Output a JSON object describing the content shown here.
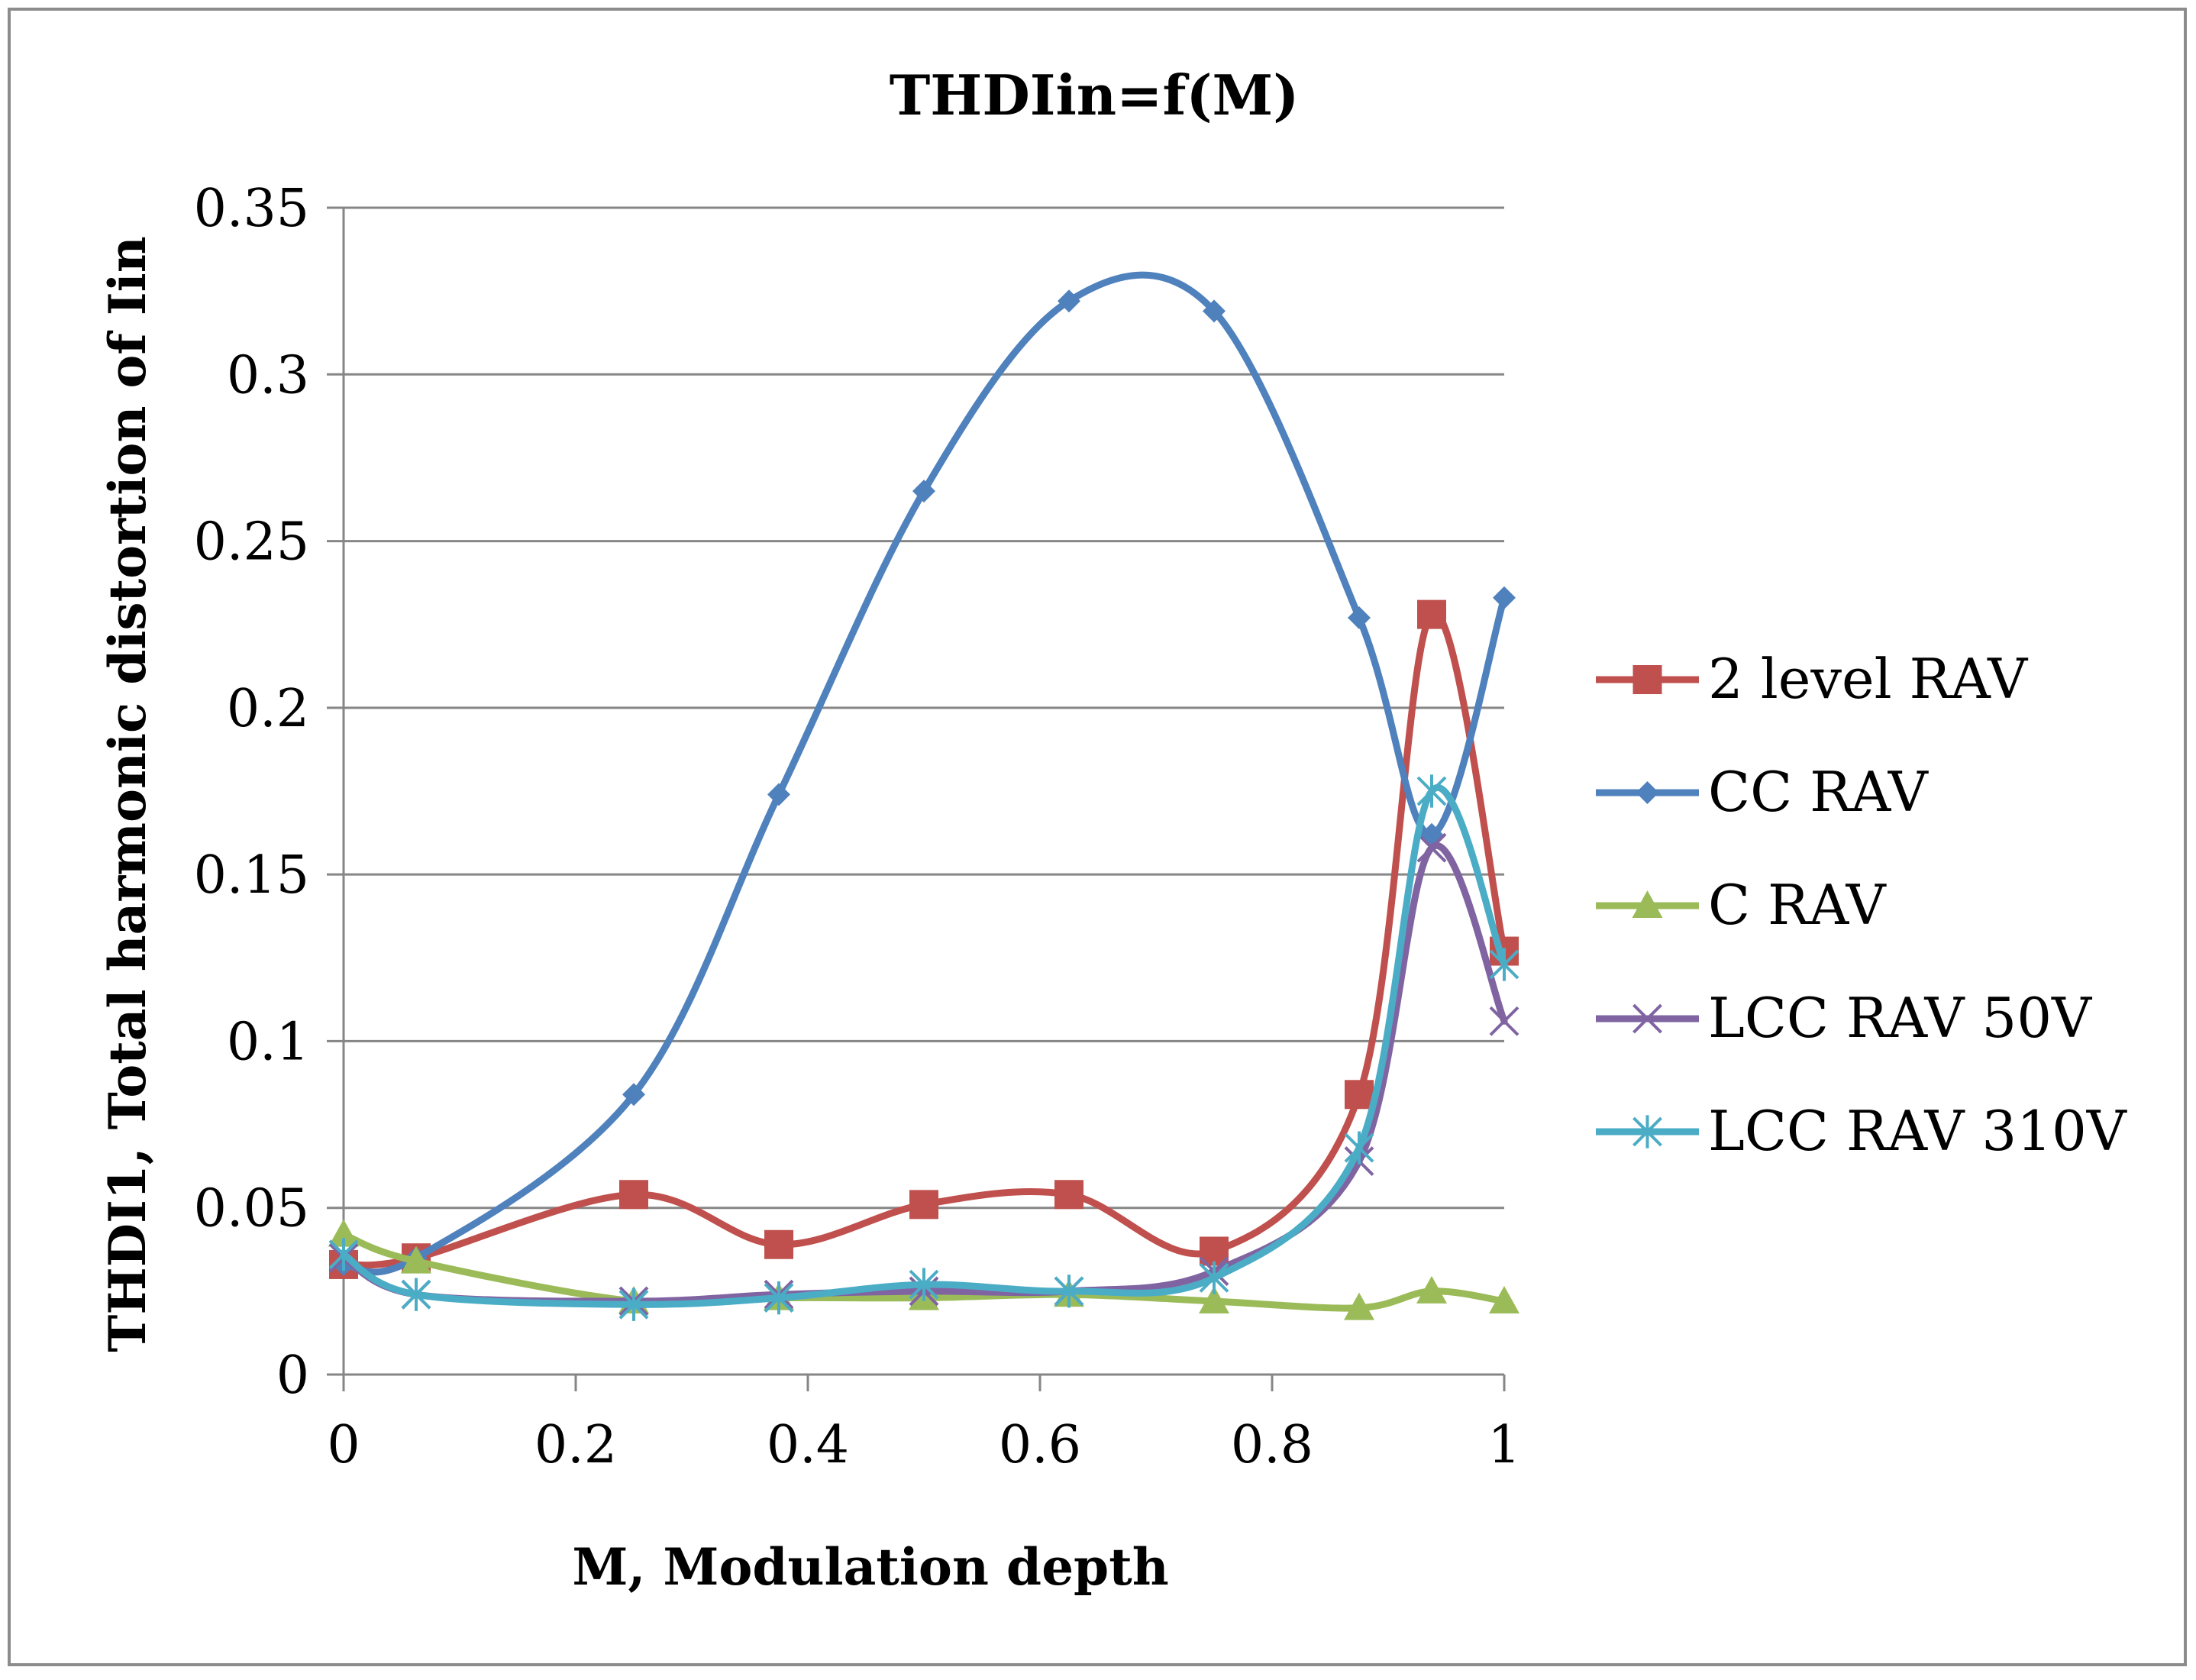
{
  "chart_data": {
    "type": "line",
    "title": "THDIin=f(M)",
    "xlabel": "M, Modulation depth",
    "ylabel": "THDI1, Total harmonic distortion of Iin",
    "xlim": [
      0,
      1
    ],
    "ylim": [
      0,
      0.35
    ],
    "x_ticks": [
      "0",
      "0.2",
      "0.4",
      "0.6",
      "0.8",
      "1"
    ],
    "y_ticks": [
      "0",
      "0.05",
      "0.1",
      "0.15",
      "0.2",
      "0.25",
      "0.3",
      "0.35"
    ],
    "grid": true,
    "legend_position": "right",
    "x": [
      0,
      0.0625,
      0.25,
      0.375,
      0.5,
      0.625,
      0.75,
      0.875,
      0.9375,
      1
    ],
    "series": [
      {
        "name": "2 level RAV",
        "color": "#c0504d",
        "marker": "square",
        "values": [
          0.033,
          0.035,
          0.054,
          0.039,
          0.051,
          0.054,
          0.037,
          0.084,
          0.228,
          0.127
        ]
      },
      {
        "name": "CC RAV",
        "color": "#4f81bd",
        "marker": "diamond",
        "values": [
          0.033,
          0.035,
          0.084,
          0.174,
          0.265,
          0.322,
          0.319,
          0.227,
          0.162,
          0.233
        ]
      },
      {
        "name": "C RAV",
        "color": "#9bbb59",
        "marker": "triangle",
        "values": [
          0.042,
          0.034,
          0.022,
          0.023,
          0.023,
          0.024,
          0.022,
          0.02,
          0.025,
          0.022
        ]
      },
      {
        "name": "LCC RAV 50V",
        "color": "#8064a2",
        "marker": "x",
        "values": [
          0.035,
          0.024,
          0.022,
          0.024,
          0.025,
          0.025,
          0.031,
          0.064,
          0.158,
          0.106
        ]
      },
      {
        "name": "LCC RAV 310V",
        "color": "#4bacc6",
        "marker": "star",
        "values": [
          0.036,
          0.024,
          0.021,
          0.023,
          0.027,
          0.025,
          0.029,
          0.068,
          0.175,
          0.123
        ]
      }
    ]
  }
}
